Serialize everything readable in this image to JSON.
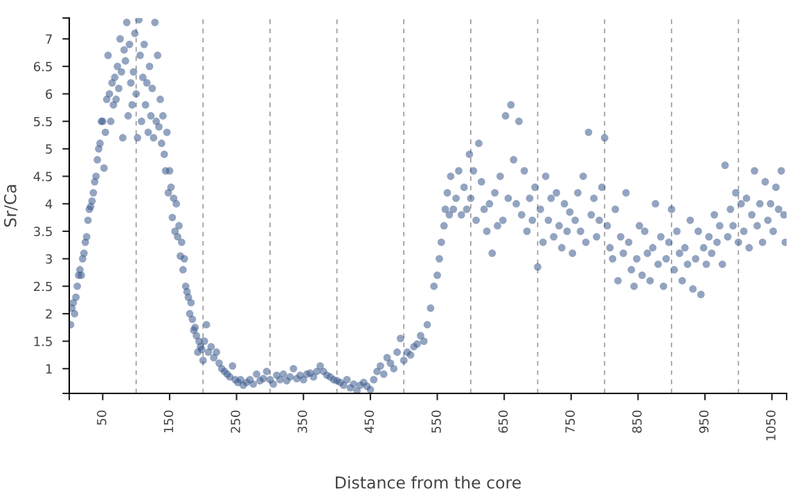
{
  "chart_data": {
    "type": "scatter",
    "xlabel": "Distance from the core",
    "ylabel": "Sr/Ca",
    "xlim": [
      0,
      1072
    ],
    "ylim": [
      0.55,
      7.38
    ],
    "xticks": [
      {
        "value": 0,
        "label": null
      },
      50,
      150,
      250,
      350,
      450,
      550,
      650,
      750,
      850,
      950,
      1050,
      {
        "value": 1072,
        "label": null
      }
    ],
    "yticks": [
      {
        "value": 0.55,
        "label": null
      },
      1,
      1.5,
      2,
      2.5,
      3,
      3.5,
      4,
      4.5,
      5,
      5.5,
      6,
      6.5,
      7,
      {
        "value": 7.38,
        "label": null
      }
    ],
    "grid": false,
    "marker": "circle",
    "ref_lines": [
      {
        "axis": "x",
        "value": 100,
        "color": "#999999",
        "line_style": "dashed"
      },
      {
        "axis": "x",
        "value": 200,
        "color": "#999999",
        "line_style": "dashed"
      },
      {
        "axis": "x",
        "value": 300,
        "color": "#999999",
        "line_style": "dashed"
      },
      {
        "axis": "x",
        "value": 400,
        "color": "#999999",
        "line_style": "dashed"
      },
      {
        "axis": "x",
        "value": 500,
        "color": "#999999",
        "line_style": "dashed"
      },
      {
        "axis": "x",
        "value": 600,
        "color": "#999999",
        "line_style": "dashed"
      },
      {
        "axis": "x",
        "value": 700,
        "color": "#999999",
        "line_style": "dashed"
      },
      {
        "axis": "x",
        "value": 800,
        "color": "#999999",
        "line_style": "dashed"
      },
      {
        "axis": "x",
        "value": 900,
        "color": "#999999",
        "line_style": "dashed"
      },
      {
        "axis": "x",
        "value": 1000,
        "color": "#999999",
        "line_style": "dashed"
      }
    ],
    "series": [
      {
        "color": "#3b5a8c",
        "x": [
          2,
          4,
          6,
          8,
          10,
          12,
          14,
          16,
          18,
          20,
          22,
          24,
          26,
          28,
          30,
          32,
          34,
          36,
          38,
          40,
          42,
          44,
          46,
          48,
          50,
          52,
          54,
          56,
          58,
          60,
          62,
          64,
          66,
          68,
          70,
          72,
          74,
          76,
          78,
          80,
          82,
          84,
          86,
          88,
          90,
          92,
          94,
          96,
          98,
          100,
          102,
          104,
          106,
          108,
          110,
          112,
          114,
          116,
          118,
          120,
          122,
          124,
          126,
          128,
          130,
          132,
          134,
          136,
          138,
          140,
          142,
          144,
          146,
          148,
          150,
          152,
          154,
          156,
          158,
          160,
          162,
          164,
          166,
          168,
          170,
          172,
          174,
          176,
          178,
          180,
          182,
          184,
          186,
          188,
          190,
          192,
          194,
          196,
          198,
          200,
          202,
          205,
          208,
          212,
          216,
          220,
          224,
          228,
          232,
          236,
          240,
          244,
          248,
          252,
          256,
          260,
          265,
          270,
          275,
          280,
          285,
          290,
          295,
          300,
          305,
          310,
          315,
          320,
          325,
          330,
          335,
          340,
          345,
          350,
          355,
          360,
          365,
          370,
          375,
          380,
          385,
          390,
          395,
          400,
          405,
          410,
          415,
          420,
          425,
          430,
          435,
          440,
          445,
          450,
          455,
          460,
          465,
          470,
          475,
          480,
          485,
          490,
          495,
          500,
          505,
          510,
          515,
          520,
          525,
          530,
          535,
          540,
          545,
          550,
          553,
          556,
          560,
          562,
          565,
          568,
          570,
          574,
          578,
          582,
          586,
          590,
          594,
          598,
          600,
          604,
          608,
          612,
          616,
          620,
          624,
          628,
          632,
          636,
          640,
          644,
          648,
          652,
          656,
          660,
          664,
          668,
          672,
          676,
          680,
          684,
          688,
          692,
          696,
          700,
          704,
          708,
          712,
          716,
          720,
          724,
          728,
          732,
          736,
          740,
          744,
          748,
          752,
          756,
          760,
          764,
          768,
          772,
          776,
          780,
          784,
          788,
          792,
          796,
          800,
          804,
          808,
          812,
          816,
          820,
          824,
          828,
          832,
          836,
          840,
          844,
          848,
          852,
          856,
          860,
          864,
          868,
          872,
          876,
          880,
          884,
          888,
          892,
          896,
          900,
          904,
          908,
          912,
          916,
          920,
          924,
          928,
          932,
          936,
          940,
          944,
          948,
          952,
          956,
          960,
          964,
          968,
          972,
          976,
          980,
          984,
          988,
          992,
          996,
          1000,
          1004,
          1008,
          1012,
          1016,
          1020,
          1024,
          1028,
          1032,
          1036,
          1040,
          1044,
          1048,
          1052,
          1056,
          1060,
          1064,
          1068,
          1070
        ],
        "values": [
          1.8,
          2.1,
          2.2,
          2.0,
          2.3,
          2.5,
          2.7,
          2.8,
          2.7,
          3.0,
          3.1,
          3.3,
          3.4,
          3.7,
          3.9,
          3.95,
          4.05,
          4.2,
          4.4,
          4.5,
          4.8,
          5.0,
          5.1,
          5.5,
          5.5,
          4.65,
          5.3,
          5.9,
          6.7,
          6.0,
          5.5,
          6.2,
          5.8,
          6.3,
          5.9,
          6.5,
          6.1,
          7.0,
          6.4,
          5.2,
          6.8,
          6.6,
          7.3,
          5.6,
          6.9,
          6.2,
          5.8,
          6.4,
          7.1,
          6.0,
          5.2,
          7.35,
          6.7,
          5.5,
          6.3,
          6.9,
          5.8,
          6.2,
          5.3,
          6.5,
          5.6,
          6.1,
          5.2,
          7.3,
          5.5,
          6.7,
          5.4,
          5.9,
          5.1,
          5.6,
          4.9,
          4.6,
          5.3,
          4.2,
          4.6,
          4.3,
          3.75,
          4.1,
          3.5,
          4.0,
          3.4,
          3.6,
          3.05,
          3.3,
          2.8,
          3.0,
          2.5,
          2.4,
          2.3,
          2.0,
          2.2,
          1.9,
          1.7,
          1.75,
          1.6,
          1.3,
          1.5,
          1.4,
          1.35,
          1.15,
          1.5,
          1.8,
          1.3,
          1.4,
          1.2,
          1.3,
          1.1,
          1.0,
          0.95,
          0.9,
          0.85,
          1.05,
          0.8,
          0.75,
          0.8,
          0.7,
          0.75,
          0.8,
          0.72,
          0.9,
          0.78,
          0.82,
          0.95,
          0.8,
          0.72,
          0.88,
          0.8,
          0.9,
          0.78,
          0.85,
          1.0,
          0.82,
          0.88,
          0.8,
          0.9,
          0.92,
          0.85,
          0.95,
          1.05,
          0.95,
          0.88,
          0.85,
          0.8,
          0.78,
          0.75,
          0.7,
          0.8,
          0.65,
          0.72,
          0.6,
          0.7,
          0.75,
          0.68,
          0.62,
          0.8,
          0.95,
          1.05,
          0.9,
          1.2,
          1.1,
          1.0,
          1.3,
          1.55,
          1.15,
          1.3,
          1.25,
          1.4,
          1.45,
          1.6,
          1.5,
          1.8,
          2.1,
          2.5,
          2.7,
          3.0,
          3.3,
          3.6,
          3.9,
          4.2,
          3.8,
          4.5,
          3.9,
          4.1,
          4.6,
          3.8,
          4.3,
          3.9,
          4.9,
          4.1,
          4.6,
          3.7,
          5.1,
          4.4,
          3.9,
          3.5,
          4.0,
          3.1,
          4.2,
          3.6,
          4.5,
          3.7,
          5.6,
          4.1,
          5.8,
          4.8,
          4.0,
          5.5,
          3.8,
          4.6,
          3.5,
          4.1,
          3.7,
          4.3,
          2.85,
          3.9,
          3.3,
          4.5,
          3.7,
          4.1,
          3.4,
          4.2,
          3.6,
          3.2,
          4.0,
          3.5,
          3.85,
          3.1,
          3.7,
          4.2,
          3.5,
          4.5,
          3.3,
          5.3,
          3.8,
          4.1,
          3.4,
          3.7,
          4.3,
          5.2,
          3.6,
          3.2,
          3.0,
          3.9,
          2.6,
          3.4,
          3.1,
          4.2,
          3.3,
          2.8,
          2.5,
          3.0,
          3.6,
          2.7,
          3.5,
          3.1,
          2.6,
          3.2,
          4.0,
          2.9,
          3.4,
          2.5,
          3.0,
          3.3,
          3.9,
          2.8,
          3.5,
          3.1,
          2.6,
          3.2,
          2.9,
          3.7,
          2.45,
          3.0,
          3.5,
          2.35,
          3.2,
          2.9,
          3.4,
          3.1,
          3.8,
          3.3,
          3.6,
          2.9,
          4.7,
          3.4,
          3.9,
          3.6,
          4.2,
          3.3,
          4.0,
          3.5,
          4.1,
          3.2,
          3.8,
          4.6,
          3.6,
          4.0,
          3.3,
          4.4,
          3.7,
          4.0,
          3.5,
          4.3,
          3.9,
          4.6,
          3.8,
          3.3
        ]
      }
    ]
  }
}
